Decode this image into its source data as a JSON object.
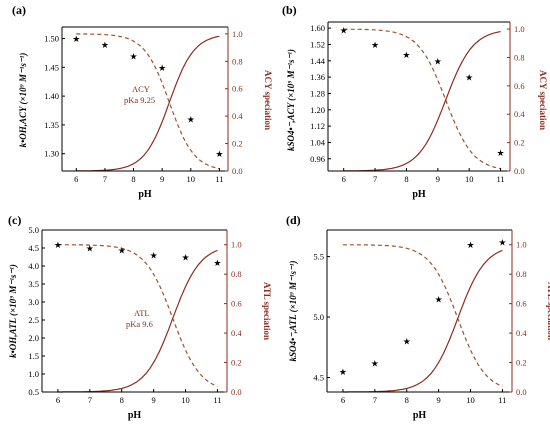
{
  "colors": {
    "accent": "#8b2e1f",
    "dashed": "#a0522d",
    "axis": "#000000"
  },
  "chart_data": [
    {
      "panel": "(a)",
      "type": "scatter",
      "xlabel": "pH",
      "ylabel": "k•OH,ACY (×10⁹ M⁻¹s⁻¹)",
      "ylabel_right": "ACY speciation",
      "xlim": [
        5.5,
        11.3
      ],
      "ylim": [
        1.27,
        1.52
      ],
      "y2lim": [
        0,
        1.05
      ],
      "xticks": [
        "6",
        "7",
        "8",
        "9",
        "10",
        "11"
      ],
      "yticks": [
        "1.30",
        "1.35",
        "1.40",
        "1.45",
        "1.50"
      ],
      "y2ticks": [
        "0.0",
        "0.2",
        "0.4",
        "0.6",
        "0.8",
        "1.0"
      ],
      "annotation": [
        "ACY",
        "pKa  9.25"
      ],
      "pKa": 9.25,
      "series": [
        {
          "x": [
            6,
            7,
            8,
            9,
            10,
            11
          ],
          "y": [
            1.5,
            1.49,
            1.47,
            1.45,
            1.36,
            1.3
          ]
        }
      ]
    },
    {
      "panel": "(b)",
      "type": "scatter",
      "xlabel": "pH",
      "ylabel": "kSO4•⁻,ACY (×10⁹ M⁻¹s⁻¹)",
      "ylabel_right": "ACY speciation",
      "xlim": [
        5.5,
        11.3
      ],
      "ylim": [
        0.9,
        1.63
      ],
      "y2lim": [
        0,
        1.05
      ],
      "xticks": [
        "6",
        "7",
        "8",
        "9",
        "10",
        "11"
      ],
      "yticks": [
        "0.96",
        "1.04",
        "1.12",
        "1.20",
        "1.28",
        "1.36",
        "1.44",
        "1.52",
        "1.60"
      ],
      "y2ticks": [
        "0.0",
        "0.2",
        "0.4",
        "0.6",
        "0.8",
        "1.0"
      ],
      "annotation": [],
      "pKa": 9.25,
      "series": [
        {
          "x": [
            6,
            7,
            8,
            9,
            10,
            11
          ],
          "y": [
            1.59,
            1.52,
            1.47,
            1.44,
            1.36,
            0.99
          ]
        }
      ]
    },
    {
      "panel": "(c)",
      "type": "scatter",
      "xlabel": "pH",
      "ylabel": "k•OH,ATL (×10⁹ M⁻¹s⁻¹)",
      "ylabel_right": "ATL speciation",
      "xlim": [
        5.5,
        11.3
      ],
      "ylim": [
        0.5,
        5.0
      ],
      "y2lim": [
        0,
        1.1
      ],
      "xticks": [
        "6",
        "7",
        "8",
        "9",
        "10",
        "11"
      ],
      "yticks": [
        "0.5",
        "1.0",
        "1.5",
        "2.0",
        "2.5",
        "3.0",
        "3.5",
        "4.0",
        "4.5",
        "5.0"
      ],
      "y2ticks": [
        "0.0",
        "0.2",
        "0.4",
        "0.6",
        "0.8",
        "1.0"
      ],
      "annotation": [
        "ATL",
        "pKa  9.6"
      ],
      "pKa": 9.6,
      "series": [
        {
          "x": [
            6,
            7,
            8,
            9,
            10,
            11
          ],
          "y": [
            4.6,
            4.5,
            4.45,
            4.3,
            4.25,
            4.1
          ]
        }
      ]
    },
    {
      "panel": "(d)",
      "type": "scatter",
      "xlabel": "pH",
      "ylabel": "kSO4•⁻,ATL (×10⁹ M⁻¹s⁻¹)",
      "ylabel_right": "ATL speciation",
      "xlim": [
        5.5,
        11.3
      ],
      "ylim": [
        4.38,
        5.72
      ],
      "y2lim": [
        0,
        1.1
      ],
      "xticks": [
        "6",
        "7",
        "8",
        "9",
        "10",
        "11"
      ],
      "yticks": [
        "4.5",
        "5.0",
        "5.5"
      ],
      "y2ticks": [
        "0.0",
        "0.2",
        "0.4",
        "0.6",
        "0.8",
        "1.0"
      ],
      "annotation": [],
      "pKa": 9.6,
      "series": [
        {
          "x": [
            6,
            7,
            8,
            9,
            10,
            11
          ],
          "y": [
            4.55,
            4.62,
            4.8,
            5.15,
            5.6,
            5.62
          ]
        }
      ]
    }
  ]
}
